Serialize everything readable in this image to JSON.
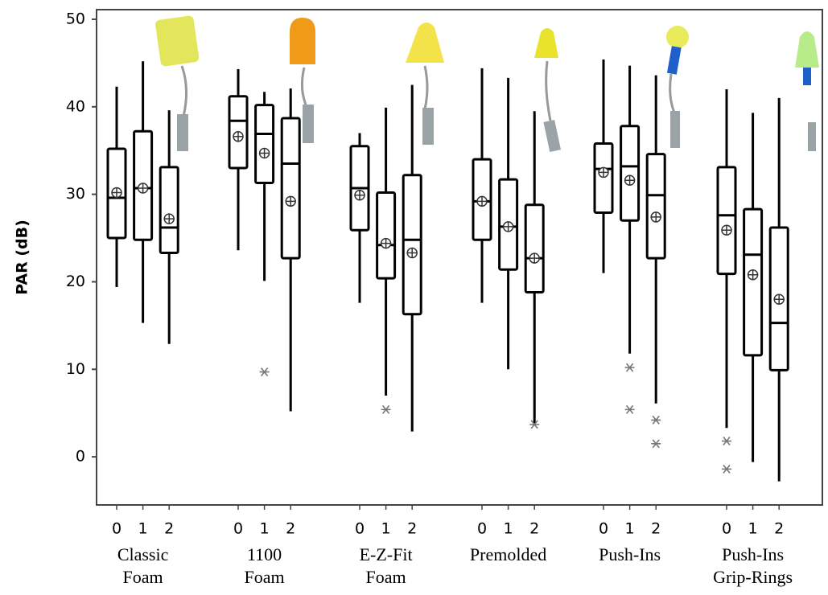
{
  "chart_data": {
    "type": "box",
    "ylabel": "PAR (dB)",
    "ylim": [
      -5.5,
      51.1
    ],
    "yticks": [
      0,
      10,
      20,
      30,
      40,
      50
    ],
    "groups": [
      {
        "label": [
          "Classic",
          "Foam"
        ],
        "boxes": [
          {
            "label": "0",
            "whislo": 19.4,
            "q1": 25.0,
            "med": 29.6,
            "q3": 35.2,
            "whishi": 42.3,
            "mean": 30.2
          },
          {
            "label": "1",
            "whislo": 15.3,
            "q1": 24.8,
            "med": 30.7,
            "q3": 37.2,
            "whishi": 45.2,
            "mean": 30.7
          },
          {
            "label": "2",
            "whislo": 12.9,
            "q1": 23.3,
            "med": 26.2,
            "q3": 33.1,
            "whishi": 39.6,
            "mean": 27.2
          }
        ]
      },
      {
        "label": [
          "1100",
          "Foam"
        ],
        "boxes": [
          {
            "label": "0",
            "whislo": 23.6,
            "q1": 33.0,
            "med": 38.4,
            "q3": 41.2,
            "whishi": 44.3,
            "mean": 36.6
          },
          {
            "label": "1",
            "whislo": 20.1,
            "q1": 31.3,
            "med": 36.9,
            "q3": 40.2,
            "whishi": 41.7,
            "mean": 34.7,
            "outliers": [
              9.7
            ]
          },
          {
            "label": "2",
            "whislo": 5.2,
            "q1": 22.7,
            "med": 33.5,
            "q3": 38.7,
            "whishi": 42.1,
            "mean": 29.2
          }
        ]
      },
      {
        "label": [
          "E-Z-Fit",
          "Foam"
        ],
        "boxes": [
          {
            "label": "0",
            "whislo": 17.6,
            "q1": 25.9,
            "med": 30.7,
            "q3": 35.5,
            "whishi": 37.0,
            "mean": 29.9
          },
          {
            "label": "1",
            "whislo": 7.0,
            "q1": 20.4,
            "med": 24.2,
            "q3": 30.2,
            "whishi": 39.9,
            "mean": 24.4,
            "outliers": [
              5.4
            ]
          },
          {
            "label": "2",
            "whislo": 2.9,
            "q1": 16.3,
            "med": 24.8,
            "q3": 32.2,
            "whishi": 42.5,
            "mean": 23.3
          }
        ]
      },
      {
        "label": [
          "Premolded"
        ],
        "boxes": [
          {
            "label": "0",
            "whislo": 17.6,
            "q1": 24.8,
            "med": 29.2,
            "q3": 34.0,
            "whishi": 44.4,
            "mean": 29.2
          },
          {
            "label": "1",
            "whislo": 10.0,
            "q1": 21.4,
            "med": 26.3,
            "q3": 31.7,
            "whishi": 43.3,
            "mean": 26.3
          },
          {
            "label": "2",
            "whislo": 3.7,
            "q1": 18.8,
            "med": 22.7,
            "q3": 28.8,
            "whishi": 39.5,
            "mean": 22.7,
            "outliers": [
              3.7
            ]
          }
        ]
      },
      {
        "label": [
          "Push-Ins"
        ],
        "boxes": [
          {
            "label": "0",
            "whislo": 21.0,
            "q1": 27.9,
            "med": 32.9,
            "q3": 35.8,
            "whishi": 45.4,
            "mean": 32.5
          },
          {
            "label": "1",
            "whislo": 11.8,
            "q1": 27.0,
            "med": 33.2,
            "q3": 37.8,
            "whishi": 44.7,
            "mean": 31.6,
            "outliers": [
              10.2,
              5.4
            ]
          },
          {
            "label": "2",
            "whislo": 6.1,
            "q1": 22.7,
            "med": 29.9,
            "q3": 34.6,
            "whishi": 43.6,
            "mean": 27.4,
            "outliers": [
              4.2,
              1.5
            ]
          }
        ]
      },
      {
        "label": [
          "Push-Ins",
          "Grip-Rings"
        ],
        "boxes": [
          {
            "label": "0",
            "whislo": 3.3,
            "q1": 20.9,
            "med": 27.6,
            "q3": 33.1,
            "whishi": 42.0,
            "mean": 25.9,
            "outliers": [
              1.8,
              -1.4
            ]
          },
          {
            "label": "1",
            "whislo": -0.6,
            "q1": 11.6,
            "med": 23.1,
            "q3": 28.3,
            "whishi": 39.3,
            "mean": 20.8
          },
          {
            "label": "2",
            "whislo": -2.8,
            "q1": 9.9,
            "med": 15.3,
            "q3": 26.2,
            "whishi": 41.0,
            "mean": 18.0
          }
        ]
      }
    ]
  }
}
